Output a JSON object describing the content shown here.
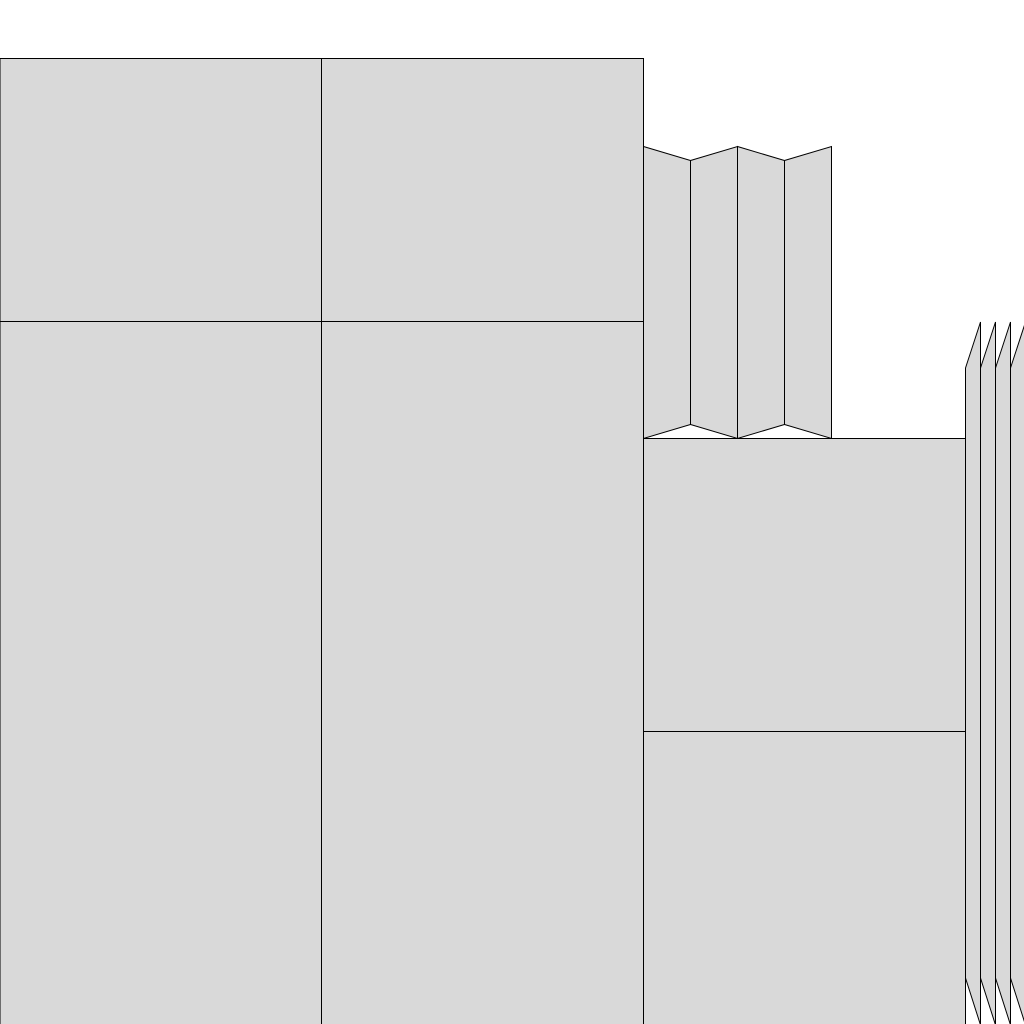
{
  "colors": {
    "fill": "#d9d9d9",
    "stroke": "#000000",
    "background": "#ffffff"
  }
}
